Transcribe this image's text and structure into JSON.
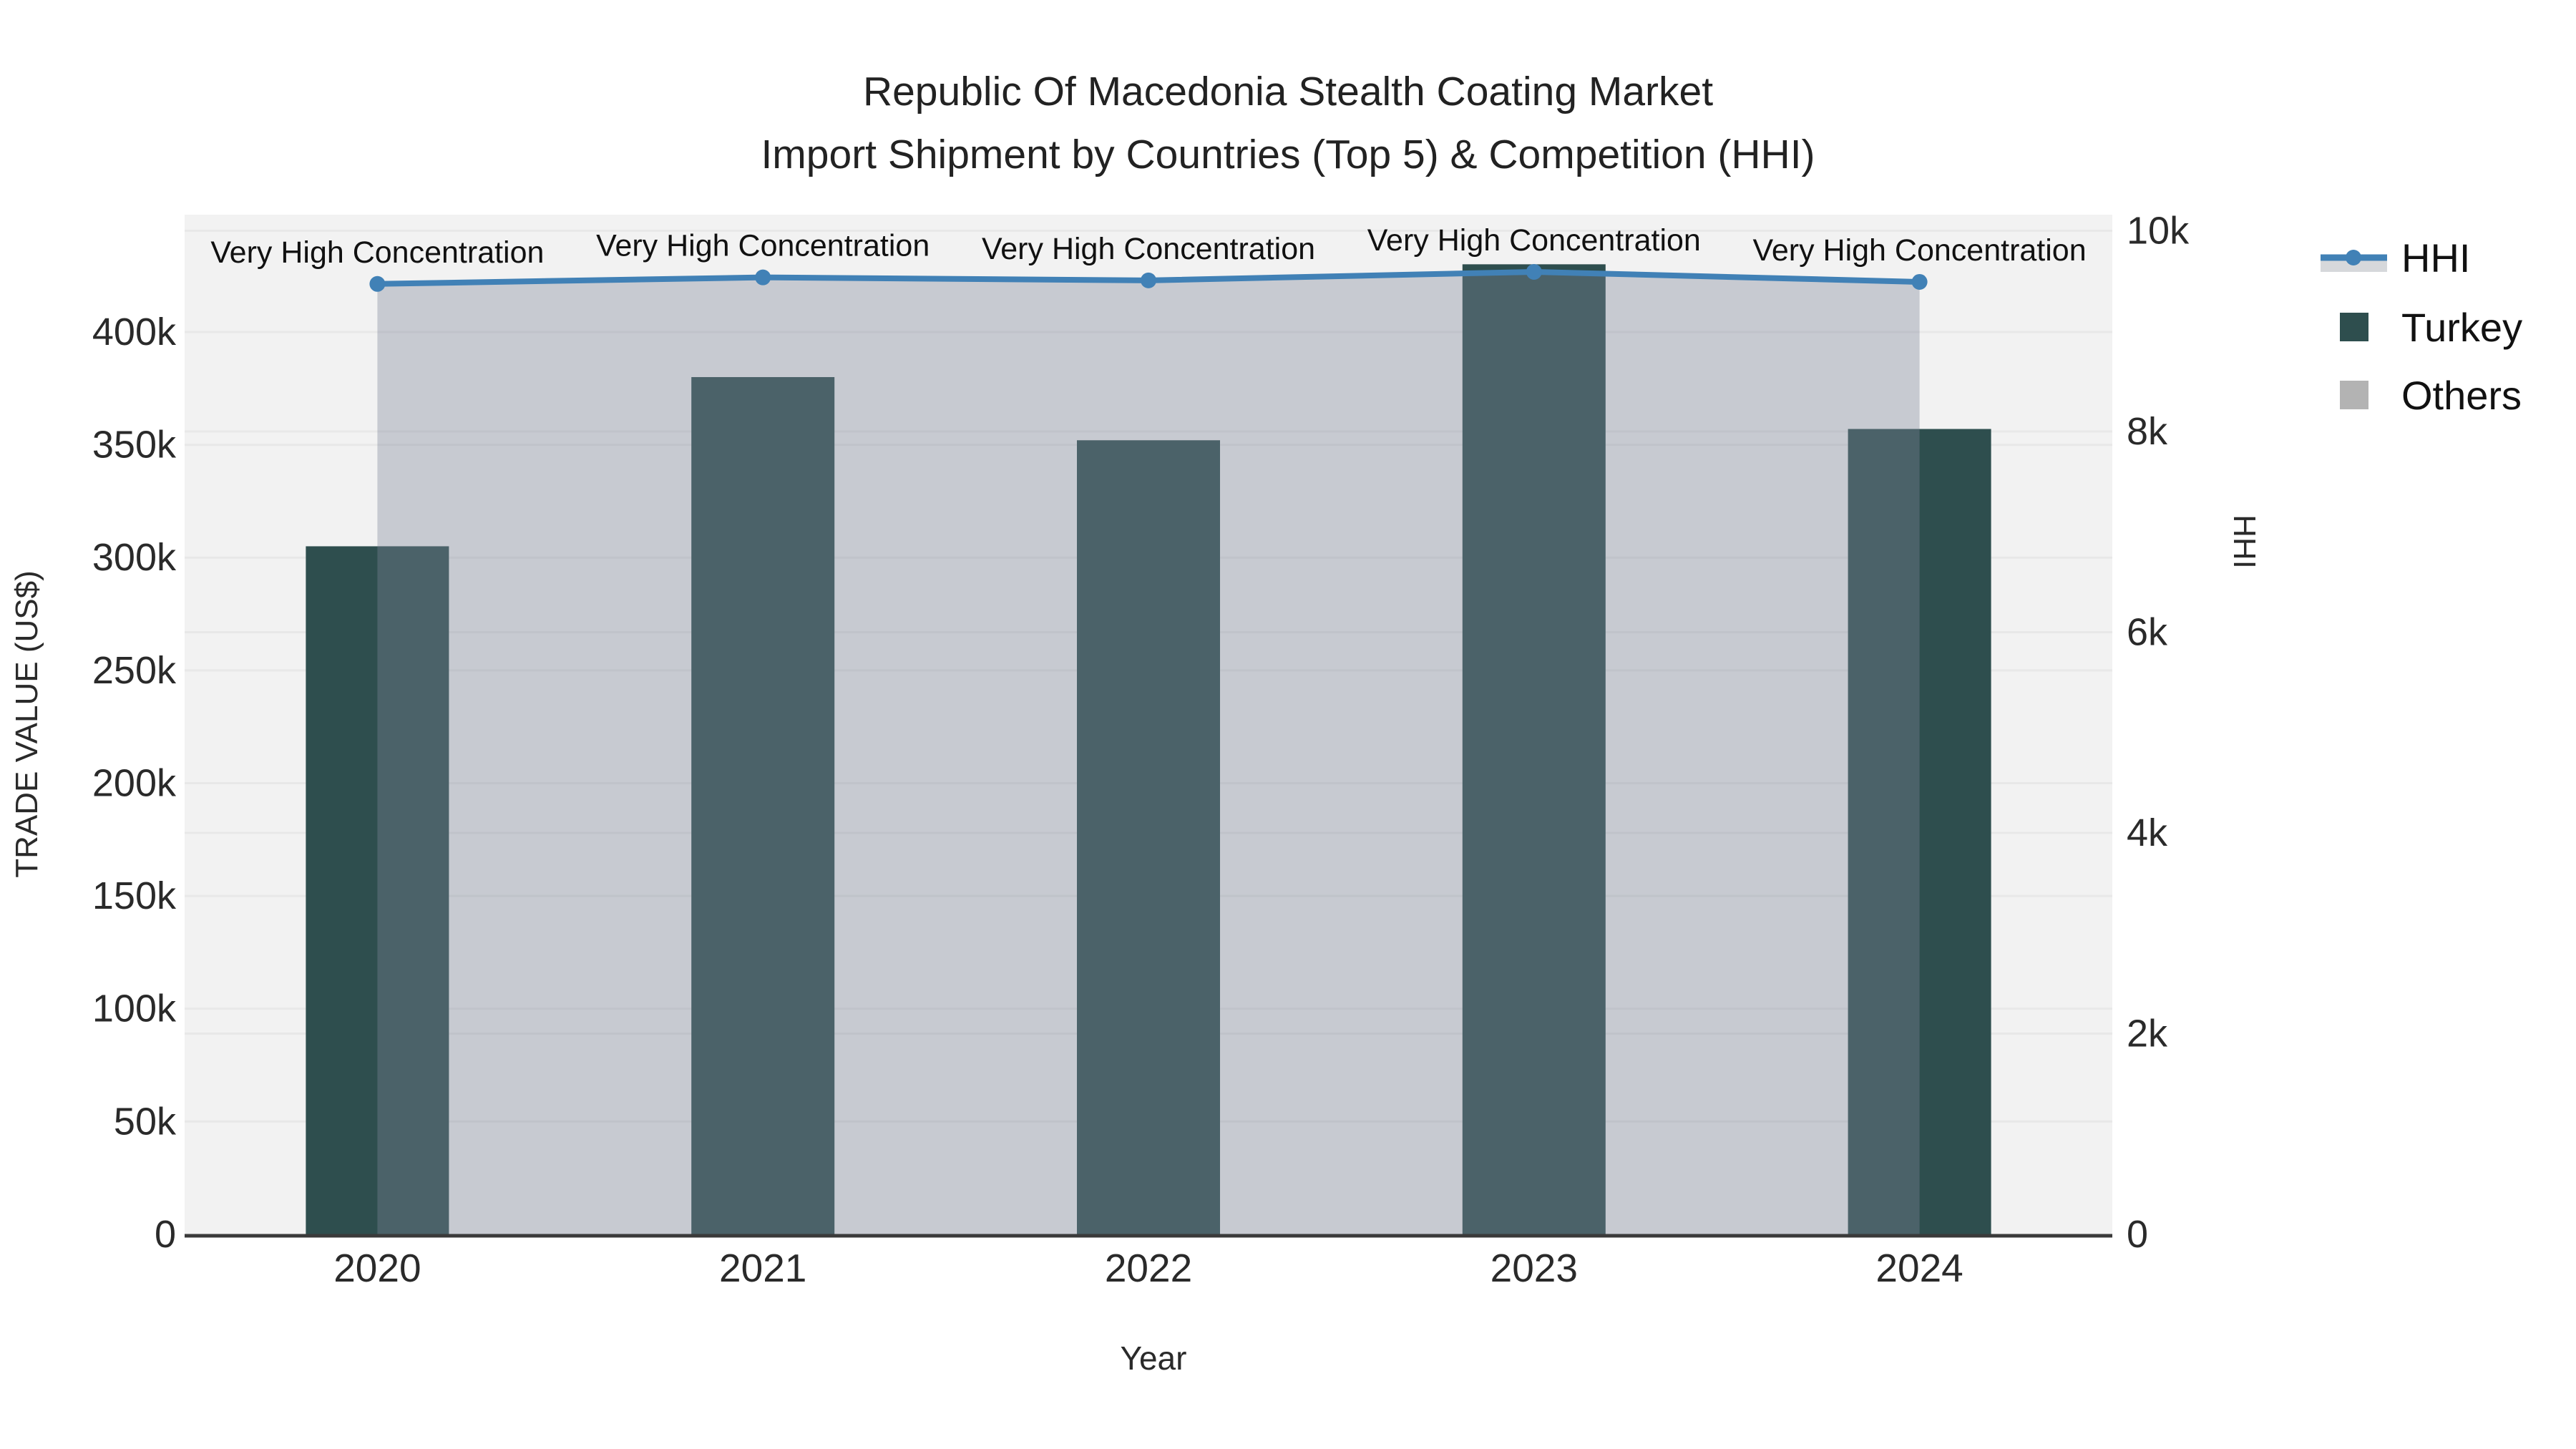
{
  "title": {
    "line1": "Republic Of Macedonia Stealth Coating Market",
    "line2": "Import Shipment by Countries (Top 5) & Competition (HHI)"
  },
  "chart_data": {
    "type": "bar+line",
    "description": "Dual y-axis combo: Turkey import trade value bars on left axis, HHI concentration index line with shaded area on right axis",
    "categories": [
      "2020",
      "2021",
      "2022",
      "2023",
      "2024"
    ],
    "series": [
      {
        "name": "Turkey",
        "type": "bar",
        "yaxis": "left",
        "values": [
          305000,
          380000,
          352000,
          430000,
          357000
        ]
      },
      {
        "name": "HHI",
        "type": "line+area",
        "yaxis": "right",
        "values": [
          9470,
          9535,
          9505,
          9590,
          9490
        ]
      }
    ],
    "annotations": [
      "Very High Concentration",
      "Very High Concentration",
      "Very High Concentration",
      "Very High Concentration",
      "Very High Concentration"
    ],
    "xlabel": "Year",
    "ylabel_left": "TRADE VALUE (US$)",
    "ylabel_right": "HHI",
    "left_axis": {
      "range": [
        0,
        452000
      ],
      "tick_values": [
        0,
        50000,
        100000,
        150000,
        200000,
        250000,
        300000,
        350000,
        400000
      ],
      "tick_labels": [
        "0",
        "50k",
        "100k",
        "150k",
        "200k",
        "250k",
        "300k",
        "350k",
        "400k"
      ]
    },
    "right_axis": {
      "range": [
        0,
        10160
      ],
      "tick_values": [
        0,
        2000,
        4000,
        6000,
        8000,
        10000
      ],
      "tick_labels": [
        "0",
        "2k",
        "4k",
        "6k",
        "8k",
        "10k"
      ]
    },
    "grid": true,
    "legend_position": "top-right"
  },
  "legend": {
    "items": [
      {
        "id": "hhi",
        "label": "HHI",
        "glyph": "line-area-marker"
      },
      {
        "id": "turkey",
        "label": "Turkey",
        "glyph": "swatch"
      },
      {
        "id": "others",
        "label": "Others",
        "glyph": "swatch"
      }
    ]
  },
  "colors": {
    "plot_bg": "#f2f2f2",
    "paper_bg": "#ffffff",
    "grid": "#e8e8e8",
    "bar": "#2e4e4e",
    "line": "#4181b6",
    "area_fill": "rgba(125,134,152,0.37)",
    "legend_band": "#d6d8db",
    "others_swatch": "#b3b3b3",
    "axis_line": "#3a3a3a",
    "text": "#2a2a2a"
  }
}
